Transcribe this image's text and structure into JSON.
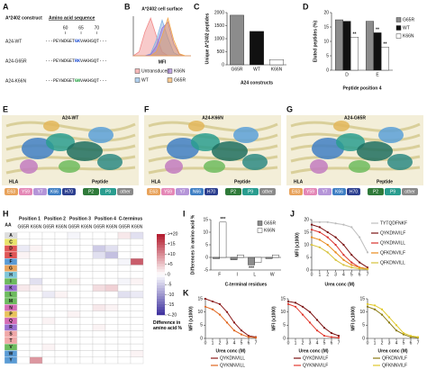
{
  "panel_labels": [
    "A",
    "B",
    "C",
    "D",
    "E",
    "F",
    "G",
    "H",
    "I",
    "J",
    "K"
  ],
  "sequence_table": {
    "headers": [
      "A*2402 construct",
      "Amino acid sequence"
    ],
    "positions": [
      "60",
      "65",
      "70"
    ],
    "rows": [
      {
        "name": "A24-WT",
        "pre": "···PEYWDGET",
        "mut": "GK",
        "post": "VAKHSQT···",
        "color": "#1f4fd1"
      },
      {
        "name": "A24-G65R",
        "pre": "···PEYWDGET",
        "mut": "RK",
        "post": "VAKHSQT···",
        "color": "#1f4fd1"
      },
      {
        "name": "A24-K66N",
        "pre": "···PEYWDGET",
        "mut": "GN",
        "post": "VAKHSQT···",
        "color": "#1a9c3a"
      }
    ]
  },
  "structures": [
    {
      "title": "A24-WT",
      "hla_label": "HLA",
      "peptide_label": "Peptide",
      "hla_residues": [
        "E63",
        "Y59",
        "Y7",
        "K66",
        "H70"
      ],
      "peptide_residues": [
        "P2",
        "P9",
        "other"
      ]
    },
    {
      "title": "A24-K66N",
      "hla_label": "HLA",
      "peptide_label": "Peptide",
      "hla_residues": [
        "E63",
        "Y59",
        "Y7",
        "N66",
        "H70"
      ],
      "peptide_residues": [
        "P2",
        "P9",
        "other"
      ]
    },
    {
      "title": "A24-G65R",
      "hla_label": "HLA",
      "peptide_label": "Peptide",
      "hla_residues": [
        "E63",
        "Y59",
        "Y7",
        "K66",
        "H70"
      ],
      "peptide_residues": [
        "P2",
        "P9",
        "other"
      ]
    }
  ],
  "chart_data": [
    {
      "type": "area",
      "title": "A*2402 cell surface",
      "x_label": "MFI",
      "x": [
        0,
        1,
        2,
        3,
        4,
        5,
        6,
        7,
        8,
        9,
        10
      ],
      "xlim": [
        0,
        10
      ],
      "ylim": [
        0,
        100
      ],
      "series": [
        {
          "name": "Untransduced",
          "color": "#f08a8a",
          "values": [
            0,
            10,
            60,
            95,
            50,
            10,
            0,
            0,
            0,
            0,
            0
          ]
        },
        {
          "name": "WT",
          "color": "#7fb2e5",
          "values": [
            0,
            0,
            0,
            5,
            40,
            90,
            45,
            8,
            0,
            0,
            0
          ]
        },
        {
          "name": "K66N",
          "color": "#9a6fd0",
          "values": [
            0,
            0,
            0,
            3,
            25,
            70,
            85,
            30,
            3,
            0,
            0
          ]
        },
        {
          "name": "G65R",
          "color": "#f2a54a",
          "values": [
            0,
            0,
            0,
            0,
            10,
            50,
            95,
            40,
            5,
            0,
            0
          ]
        }
      ]
    },
    {
      "type": "bar",
      "y_label": "Unique A*2402 peptides",
      "x_label": "A24 constructs",
      "categories": [
        "G65R",
        "WT",
        "K66N"
      ],
      "values": [
        1900,
        1280,
        200
      ],
      "colors": [
        "#8c8c8c",
        "#111111",
        "#ffffff"
      ],
      "ylim": [
        0,
        2000
      ],
      "yticks": [
        0,
        500,
        1000,
        1500,
        2000
      ]
    },
    {
      "type": "bar",
      "y_label": "Eluted peptides (%)",
      "x_label": "Peptide position 4",
      "categories": [
        "D",
        "E"
      ],
      "ylim": [
        0,
        20
      ],
      "yticks": [
        0,
        5,
        10,
        15,
        20
      ],
      "legend": "upper right",
      "annotations": [
        "**",
        "**",
        "**"
      ],
      "series": [
        {
          "name": "G65R",
          "color": "#8c8c8c",
          "values": [
            17.5,
            17
          ]
        },
        {
          "name": "WT",
          "color": "#111111",
          "values": [
            17,
            13
          ]
        },
        {
          "name": "K66N",
          "color": "#ffffff",
          "values": [
            11.5,
            8
          ]
        }
      ]
    },
    {
      "type": "bar",
      "y_label": "Differences in amino acid %",
      "x_label": "C-terminal residues",
      "categories": [
        "F",
        "I",
        "L",
        "W"
      ],
      "ylim": [
        -5,
        15
      ],
      "yticks": [
        -5,
        0,
        5,
        10,
        15
      ],
      "legend": "upper right",
      "annotations": [
        "***",
        "***"
      ],
      "series": [
        {
          "name": "G65R",
          "color": "#8c8c8c",
          "values": [
            -0.5,
            -1,
            -3,
            -0.5
          ]
        },
        {
          "name": "K66N",
          "color": "#ffffff",
          "values": [
            14,
            1,
            -2,
            1
          ]
        }
      ]
    },
    {
      "type": "line",
      "y_label": "MFI (x1000)",
      "x_label": "Urea conc (M)",
      "x": [
        0,
        1,
        2,
        3,
        4,
        5,
        6,
        7
      ],
      "xlim": [
        0,
        7
      ],
      "xticks": [
        0,
        1,
        2,
        3,
        4,
        5,
        6,
        7
      ],
      "ylim": [
        0,
        20
      ],
      "yticks": [
        0,
        5,
        10,
        15,
        20
      ],
      "legend": "right",
      "series": [
        {
          "name": "TYTQDFNKF",
          "color": "#bdbdbd",
          "values": [
            19,
            19,
            19,
            18.5,
            18,
            17,
            13,
            7
          ]
        },
        {
          "name": "QYKDNVILF",
          "color": "#7a1010",
          "values": [
            18,
            17,
            15,
            13,
            10,
            6,
            3,
            1
          ]
        },
        {
          "name": "QYKDNVILL",
          "color": "#d9312b",
          "values": [
            16,
            15,
            13,
            10,
            6,
            3,
            1,
            0.5
          ]
        },
        {
          "name": "QFKDNVILF",
          "color": "#e88a1a",
          "values": [
            13,
            12,
            10,
            7,
            4,
            2,
            1,
            0.5
          ]
        },
        {
          "name": "QFKDNVILL",
          "color": "#d6c23a",
          "values": [
            10,
            9,
            7,
            4,
            2,
            1,
            0.5,
            0.3
          ]
        }
      ]
    },
    {
      "type": "line",
      "y_label": "MFI (x1000)",
      "x_label": "Urea conc (M)",
      "x": [
        0,
        1,
        2,
        3,
        4,
        5,
        6,
        7
      ],
      "xlim": [
        0,
        7
      ],
      "xticks": [
        0,
        1,
        2,
        3,
        4,
        5,
        6,
        7
      ],
      "ylim": [
        0,
        15
      ],
      "yticks": [
        0,
        5,
        10,
        15
      ],
      "legend": "below",
      "series": [
        {
          "name": "QYKDNVILL",
          "color": "#8b1a1a",
          "values": [
            15,
            14,
            13,
            10,
            6,
            3,
            1,
            0.5
          ]
        },
        {
          "name": "QYKNNVILL",
          "color": "#e0661f",
          "values": [
            12,
            11,
            9,
            6,
            3,
            1.5,
            0.5,
            0.3
          ]
        }
      ]
    },
    {
      "type": "line",
      "y_label": "MFI (x1000)",
      "x_label": "Urea conc (M)",
      "x": [
        0,
        1,
        2,
        3,
        4,
        5,
        6,
        7
      ],
      "xlim": [
        0,
        7
      ],
      "xticks": [
        0,
        1,
        2,
        3,
        4,
        5,
        6,
        7
      ],
      "ylim": [
        0,
        15
      ],
      "yticks": [
        0,
        5,
        10,
        15
      ],
      "legend": "below",
      "series": [
        {
          "name": "QYKDNVILF",
          "color": "#7a1010",
          "values": [
            14,
            13.5,
            12,
            10,
            7,
            4,
            2,
            1
          ]
        },
        {
          "name": "QYKNNVILF",
          "color": "#e23a2f",
          "values": [
            13,
            12,
            9,
            6,
            3,
            1,
            0.5,
            0.3
          ]
        }
      ]
    },
    {
      "type": "line",
      "y_label": "MFI (x1000)",
      "x_label": "Urea conc (M)",
      "x": [
        0,
        1,
        2,
        3,
        4,
        5,
        6,
        7
      ],
      "xlim": [
        0,
        7
      ],
      "xticks": [
        0,
        1,
        2,
        3,
        4,
        5,
        6,
        7
      ],
      "ylim": [
        0,
        15
      ],
      "yticks": [
        0,
        5,
        10,
        15
      ],
      "legend": "below",
      "series": [
        {
          "name": "QFKDNVILF",
          "color": "#8a7a10",
          "values": [
            12,
            11,
            9,
            6,
            3,
            1.5,
            0.5,
            0.3
          ]
        },
        {
          "name": "QFKNNVILF",
          "color": "#e0c92a",
          "values": [
            13,
            12.5,
            11,
            8,
            5,
            2,
            1,
            0.5
          ]
        }
      ]
    },
    {
      "type": "heatmap",
      "corner": "AA",
      "column_groups": [
        "Position 1",
        "Position 2",
        "Position 3",
        "Position 4",
        "C-terminus"
      ],
      "columns": [
        "G65R",
        "K66N",
        "G65R",
        "K66N",
        "G65R",
        "K66N",
        "G65R",
        "K66N",
        "G65R",
        "K66N"
      ],
      "rows": [
        "A",
        "C",
        "D",
        "E",
        "F",
        "G",
        "H",
        "I",
        "K",
        "L",
        "M",
        "N",
        "P",
        "Q",
        "R",
        "S",
        "T",
        "V",
        "W",
        "Y"
      ],
      "values": [
        [
          0,
          0,
          0,
          0,
          -1,
          0,
          0,
          0,
          2,
          -3
        ],
        [
          0,
          0,
          0,
          0,
          0,
          0,
          0,
          0,
          0,
          0
        ],
        [
          -2,
          1,
          0,
          0,
          0,
          0,
          -5,
          -3,
          0,
          0
        ],
        [
          1,
          0,
          0,
          0,
          0,
          0,
          -3,
          -6,
          0,
          0
        ],
        [
          0,
          0,
          0,
          0,
          0,
          0,
          0,
          0,
          -1,
          14
        ],
        [
          0,
          0,
          0,
          0,
          0,
          0,
          0,
          0,
          0,
          0
        ],
        [
          0,
          0,
          0,
          0,
          0,
          0,
          0,
          0,
          0,
          0
        ],
        [
          0,
          -3,
          0,
          0,
          1,
          0,
          0,
          0,
          -1,
          1
        ],
        [
          2,
          1,
          0,
          0,
          0,
          0,
          3,
          4,
          0,
          0
        ],
        [
          0,
          0,
          -2,
          1,
          0,
          0,
          0,
          0,
          -3,
          -2
        ],
        [
          0,
          0,
          0,
          0,
          0,
          0,
          0,
          0,
          0,
          0
        ],
        [
          0,
          0,
          0,
          0,
          0,
          0,
          2,
          1,
          0,
          0
        ],
        [
          0,
          0,
          0,
          0,
          1,
          0,
          0,
          0,
          0,
          0
        ],
        [
          0,
          0,
          1,
          0,
          0,
          0,
          0,
          0,
          0,
          0
        ],
        [
          0,
          0,
          0,
          0,
          0,
          0,
          1,
          0,
          0,
          0
        ],
        [
          0,
          0,
          0,
          0,
          0,
          0,
          0,
          0,
          0,
          0
        ],
        [
          0,
          0,
          0,
          0,
          0,
          0,
          0,
          0,
          0,
          0
        ],
        [
          0,
          0,
          1,
          0,
          0,
          0,
          0,
          0,
          0,
          0
        ],
        [
          0,
          0,
          0,
          0,
          0,
          0,
          0,
          0,
          0,
          1
        ],
        [
          0,
          9,
          0,
          0,
          0,
          0,
          0,
          0,
          0,
          0
        ]
      ],
      "clim": [
        -20,
        20
      ],
      "colorbar_label": "Difference in amino acid %",
      "colorbar_ticks": [
        {
          "value": -20,
          "label": "<-20"
        },
        -15,
        -10,
        -5,
        0,
        {
          "value": 5,
          "label": "+5"
        },
        {
          "value": 10,
          "label": "+10"
        },
        {
          "value": 15,
          "label": "+15"
        },
        {
          "value": 20,
          "label": ">+20"
        }
      ]
    }
  ]
}
